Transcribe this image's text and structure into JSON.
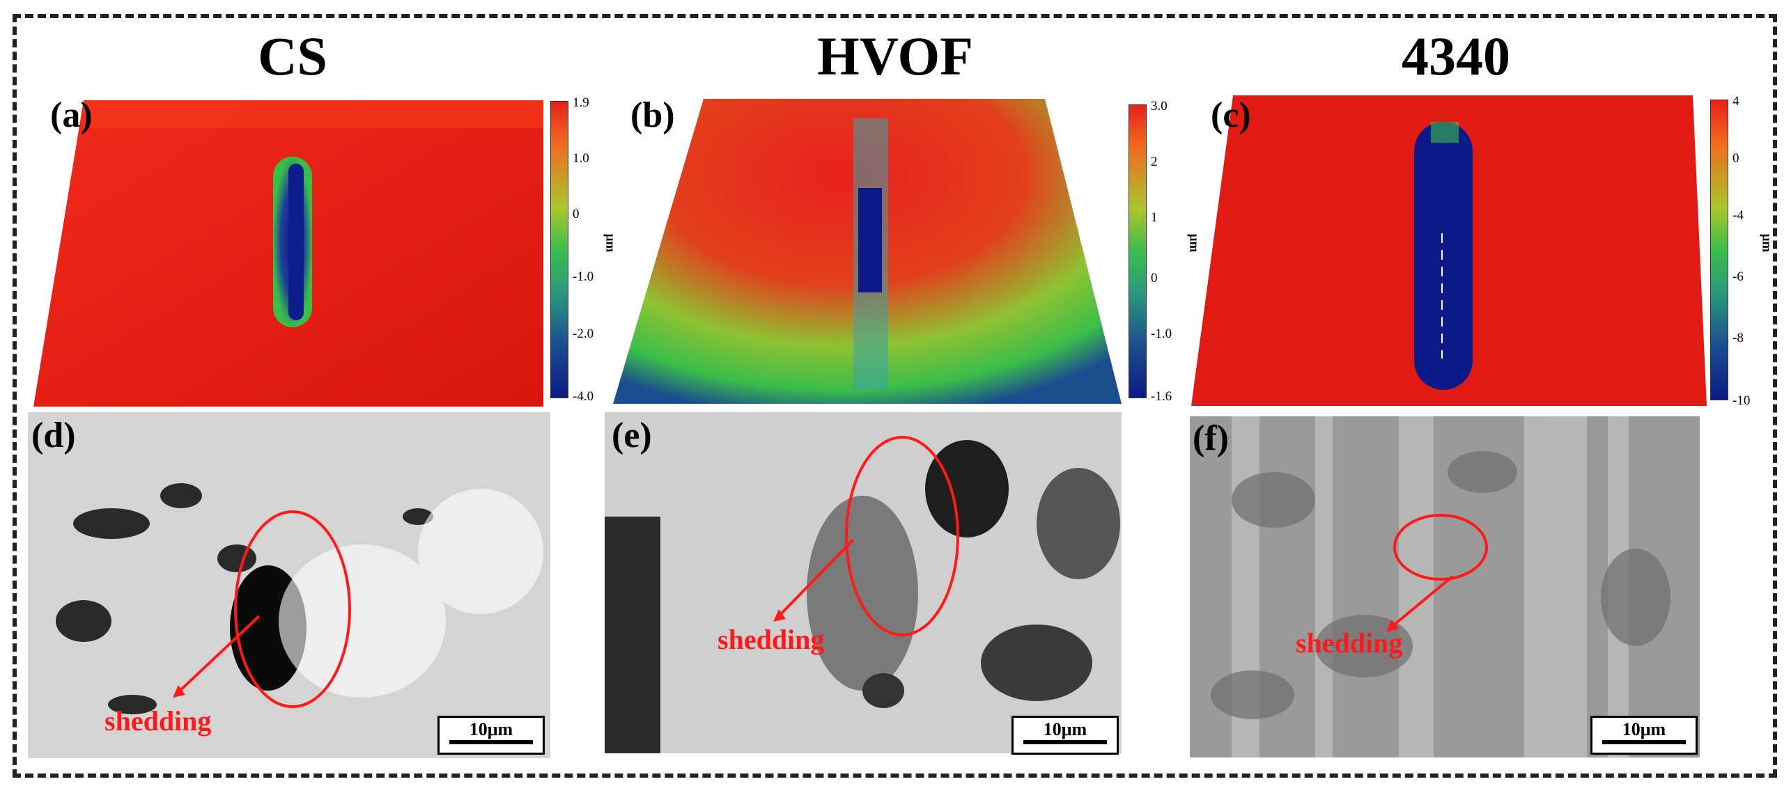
{
  "columns": {
    "cs": "CS",
    "hvof": "HVOF",
    "steel": "4340"
  },
  "panels": {
    "a": "(a)",
    "b": "(b)",
    "c": "(c)",
    "d": "(d)",
    "e": "(e)",
    "f": "(f)"
  },
  "colorbars": {
    "a": {
      "ticks": [
        "1.9",
        "1.0",
        "0",
        "-1.0",
        "-2.0",
        "-4.0"
      ],
      "unit": "μm"
    },
    "b": {
      "ticks": [
        "3.0",
        "2",
        "1",
        "0",
        "-1.0",
        "-1.6"
      ],
      "unit": "μm"
    },
    "c": {
      "ticks": [
        "4",
        "0",
        "-4",
        "-6",
        "-8",
        "-10"
      ],
      "unit": "μm"
    }
  },
  "annotations": {
    "shedding": "shedding",
    "scale": "10μm"
  },
  "colors": {
    "surface_high": "#e8201c",
    "surface_mid": "#3bbd4a",
    "surface_low": "#0b1a86",
    "annotation": "#ff1a1a"
  }
}
